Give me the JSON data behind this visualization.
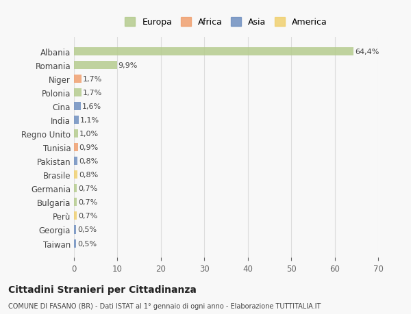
{
  "countries": [
    "Albania",
    "Romania",
    "Niger",
    "Polonia",
    "Cina",
    "India",
    "Regno Unito",
    "Tunisia",
    "Pakistan",
    "Brasile",
    "Germania",
    "Bulgaria",
    "Perù",
    "Georgia",
    "Taiwan"
  ],
  "values": [
    64.4,
    9.9,
    1.7,
    1.7,
    1.6,
    1.1,
    1.0,
    0.9,
    0.8,
    0.8,
    0.7,
    0.7,
    0.7,
    0.5,
    0.5
  ],
  "labels": [
    "64,4%",
    "9,9%",
    "1,7%",
    "1,7%",
    "1,6%",
    "1,1%",
    "1,0%",
    "0,9%",
    "0,8%",
    "0,8%",
    "0,7%",
    "0,7%",
    "0,7%",
    "0,5%",
    "0,5%"
  ],
  "colors": [
    "#b5cc8e",
    "#b5cc8e",
    "#f0a070",
    "#b5cc8e",
    "#7090c0",
    "#7090c0",
    "#b5cc8e",
    "#f0a070",
    "#7090c0",
    "#f0d070",
    "#b5cc8e",
    "#b5cc8e",
    "#f0d070",
    "#7090c0",
    "#7090c0"
  ],
  "legend_labels": [
    "Europa",
    "Africa",
    "Asia",
    "America"
  ],
  "legend_colors": [
    "#b5cc8e",
    "#f0a070",
    "#7090c0",
    "#f0d070"
  ],
  "title": "Cittadini Stranieri per Cittadinanza",
  "subtitle": "COMUNE DI FASANO (BR) - Dati ISTAT al 1° gennaio di ogni anno - Elaborazione TUTTITALIA.IT",
  "xlim": [
    0,
    70
  ],
  "xticks": [
    0,
    10,
    20,
    30,
    40,
    50,
    60,
    70
  ],
  "bg_color": "#f8f8f8",
  "grid_color": "#dddddd"
}
